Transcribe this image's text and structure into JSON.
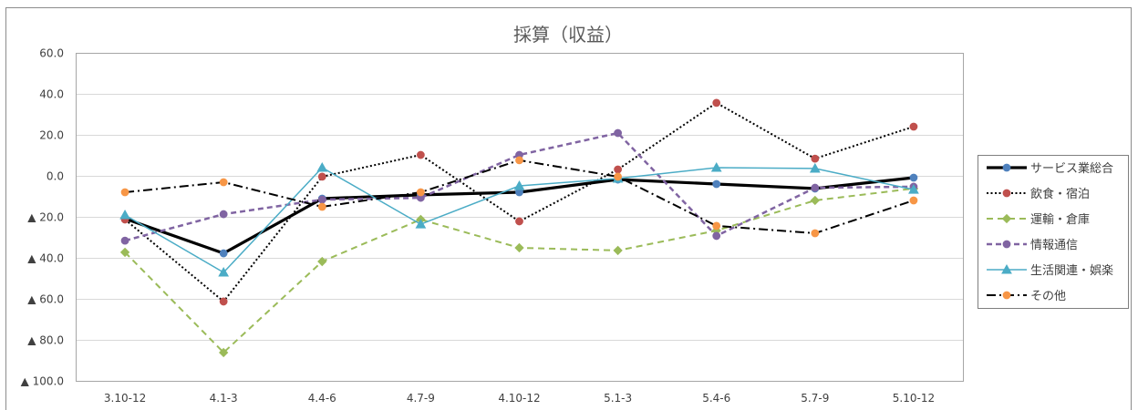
{
  "chart_data": {
    "type": "line",
    "title": "採算（収益）",
    "categories": [
      "3.10-12",
      "4.1-3",
      "4.4-6",
      "4.7-9",
      "4.10-12",
      "5.1-3",
      "5.4-6",
      "5.7-9",
      "5.10-12"
    ],
    "ylim": [
      -100,
      60
    ],
    "yticks": [
      {
        "value": 60,
        "label": "60.0"
      },
      {
        "value": 40,
        "label": "40.0"
      },
      {
        "value": 20,
        "label": "20.0"
      },
      {
        "value": 0,
        "label": "0.0"
      },
      {
        "value": -20,
        "label": "▲ 20.0"
      },
      {
        "value": -40,
        "label": "▲ 40.0"
      },
      {
        "value": -60,
        "label": "▲ 60.0"
      },
      {
        "value": -80,
        "label": "▲ 80.0"
      },
      {
        "value": -100,
        "label": "▲ 100.0"
      }
    ],
    "grid": true,
    "legend_position": "right",
    "series": [
      {
        "name": "サービス業総合",
        "line_color": "#000000",
        "marker_color": "#4F81BD",
        "line_style": "thick",
        "marker": "circle",
        "values": [
          -20.9,
          -37.8,
          -11.1,
          -9.3,
          -8.0,
          -1.8,
          -4.0,
          -6.2,
          -0.9
        ]
      },
      {
        "name": "飲食・宿泊",
        "line_color": "#000000",
        "marker_color": "#C0504D",
        "line_style": "dotted",
        "marker": "circle",
        "values": [
          -21.3,
          -61.3,
          -0.4,
          10.2,
          -22.2,
          3.1,
          35.6,
          8.4,
          24.0
        ]
      },
      {
        "name": "運輸・倉庫",
        "line_color": "#9BBB59",
        "marker_color": "#9BBB59",
        "line_style": "dashed",
        "marker": "diamond",
        "values": [
          -37.3,
          -86.2,
          -41.8,
          -21.3,
          -35.1,
          -36.4,
          -26.7,
          -12.0,
          -6.2
        ]
      },
      {
        "name": "情報通信",
        "line_color": "#8064A2",
        "marker_color": "#8064A2",
        "line_style": "dashed-bold",
        "marker": "circle",
        "values": [
          -31.6,
          -18.7,
          -11.6,
          -10.7,
          10.2,
          20.9,
          -29.3,
          -5.8,
          -5.3
        ]
      },
      {
        "name": "生活関連・娯楽",
        "line_color": "#4BACC6",
        "marker_color": "#4BACC6",
        "line_style": "thin",
        "marker": "triangle",
        "values": [
          -19.1,
          -47.1,
          4.0,
          -23.6,
          -4.9,
          -1.3,
          4.0,
          3.6,
          -6.7
        ]
      },
      {
        "name": "その他",
        "line_color": "#000000",
        "marker_color": "#F79646",
        "line_style": "dashdot",
        "marker": "circle",
        "values": [
          -8.0,
          -3.1,
          -15.1,
          -8.0,
          7.6,
          -0.4,
          -24.4,
          -28.0,
          -12.0
        ]
      }
    ]
  }
}
